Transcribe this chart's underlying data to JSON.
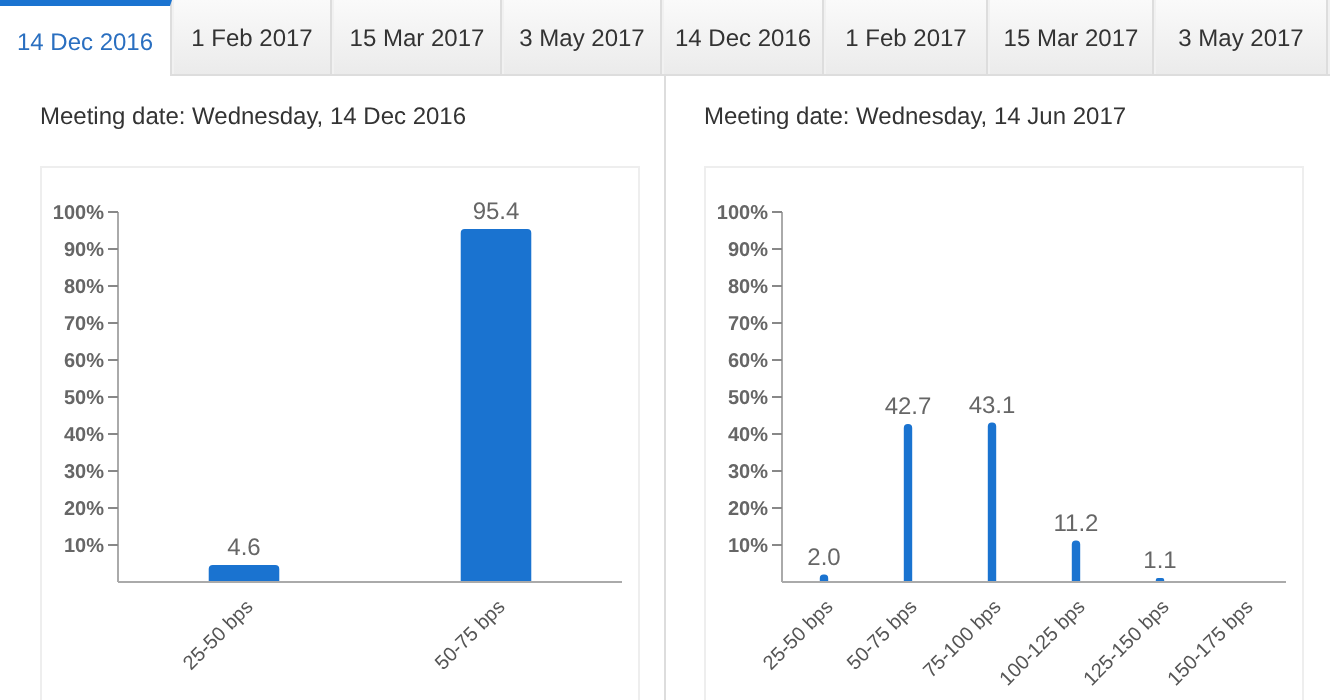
{
  "chart_data": [
    {
      "type": "bar",
      "title": "Meeting date: Wednesday, 14 Dec 2016",
      "annotations": [
        "14 Dec 2016",
        "1 Feb 2017",
        "15 Mar 2017",
        "3 May 2017"
      ],
      "categories": [
        "25-50 bps",
        "50-75 bps"
      ],
      "values": [
        4.6,
        95.4
      ],
      "value_labels": [
        "4.6",
        "95.4"
      ],
      "color": "#1a73d0",
      "ylim": [
        0,
        100
      ],
      "yticks": [
        {
          "value": 10,
          "label": "10%"
        },
        {
          "value": 20,
          "label": "20%"
        },
        {
          "value": 30,
          "label": "30%"
        },
        {
          "value": 40,
          "label": "40%"
        },
        {
          "value": 50,
          "label": "50%"
        },
        {
          "value": 60,
          "label": "60%"
        },
        {
          "value": 70,
          "label": "70%"
        },
        {
          "value": 80,
          "label": "80%"
        },
        {
          "value": 90,
          "label": "90%"
        },
        {
          "value": 100,
          "label": "100%"
        }
      ],
      "grid": false,
      "legend": false
    },
    {
      "type": "bar",
      "title": "Meeting date: Wednesday, 14 Jun 2017",
      "annotations": [
        "14 Dec 2016",
        "1 Feb 2017",
        "15 Mar 2017",
        "3 May 2017"
      ],
      "categories": [
        "25-50 bps",
        "50-75 bps",
        "75-100 bps",
        "100-125 bps",
        "125-150 bps",
        "150-175 bps"
      ],
      "values": [
        2.0,
        42.7,
        43.1,
        11.2,
        1.1,
        0
      ],
      "value_labels": [
        "2.0",
        "42.7",
        "43.1",
        "11.2",
        "1.1",
        null
      ],
      "color": "#1a73d0",
      "ylim": [
        0,
        100
      ],
      "yticks": [
        {
          "value": 10,
          "label": "10%"
        },
        {
          "value": 20,
          "label": "20%"
        },
        {
          "value": 30,
          "label": "30%"
        },
        {
          "value": 40,
          "label": "40%"
        },
        {
          "value": 50,
          "label": "50%"
        },
        {
          "value": 60,
          "label": "60%"
        },
        {
          "value": 70,
          "label": "70%"
        },
        {
          "value": 80,
          "label": "80%"
        },
        {
          "value": 90,
          "label": "90%"
        },
        {
          "value": 100,
          "label": "100%"
        }
      ],
      "grid": false,
      "legend": false
    }
  ]
}
